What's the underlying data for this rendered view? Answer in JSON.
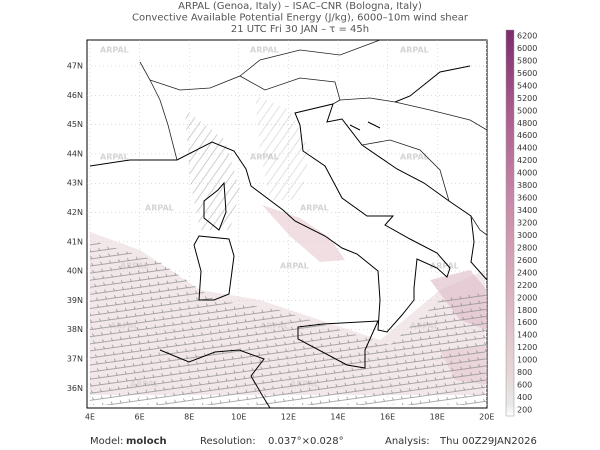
{
  "header": {
    "lines": [
      "ARPAL (Genoa, Italy)  –  ISAC–CNR (Bologna, Italy)",
      "Convective Available Potential Energy (J/kg), 6000–10m wind shear",
      "21 UTC Fri 30 JAN  –  τ = 45h"
    ]
  },
  "map": {
    "watermark": "ARPAL",
    "lat_labels": [
      "47N",
      "46N",
      "45N",
      "44N",
      "43N",
      "42N",
      "41N",
      "40N",
      "39N",
      "38N",
      "37N",
      "36N"
    ],
    "lon_labels": [
      "4E",
      "6E",
      "8E",
      "10E",
      "12E",
      "14E",
      "16E",
      "18E",
      "20E"
    ]
  },
  "colorbar": {
    "labels": [
      "200",
      "400",
      "600",
      "800",
      "1000",
      "1200",
      "1400",
      "1600",
      "1800",
      "2000",
      "2200",
      "2400",
      "2600",
      "2800",
      "3000",
      "3200",
      "3400",
      "3600",
      "3800",
      "4000",
      "4200",
      "4400",
      "4600",
      "4800",
      "5000",
      "5200",
      "5400",
      "5600",
      "5800",
      "6000",
      "6200"
    ]
  },
  "footer": {
    "model_label": "Model:",
    "model": "moloch",
    "resolution_label": "Resolution:",
    "resolution": "0.037°×0.028°",
    "analysis_label": "Analysis:",
    "analysis": "Thu 00Z29JAN2026"
  }
}
